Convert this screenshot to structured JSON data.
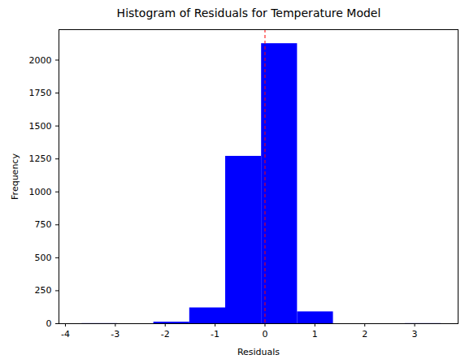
{
  "chart_data": {
    "type": "histogram",
    "title": "Histogram of Residuals for Temperature Model",
    "x_label": "Residuals",
    "y_label": "Frequency",
    "bins": [
      -3.67,
      -2.95,
      -2.23,
      -1.51,
      -0.79,
      -0.07,
      0.65,
      1.37,
      2.09,
      2.81,
      3.53
    ],
    "values": [
      1,
      0,
      12,
      120,
      1270,
      2125,
      90,
      0,
      0,
      1
    ],
    "color": "#0000ff",
    "vline": 0,
    "vline_color": "#ff0000",
    "vline_style": "dashed",
    "xlim": [
      -4.13,
      3.87
    ],
    "xticks": [
      -4,
      -3,
      -2,
      -1,
      0,
      1,
      2,
      3
    ],
    "ylim": [
      0,
      2231
    ],
    "yticks": [
      0,
      250,
      500,
      750,
      1000,
      1250,
      1500,
      1750,
      2000
    ],
    "grid": false
  }
}
